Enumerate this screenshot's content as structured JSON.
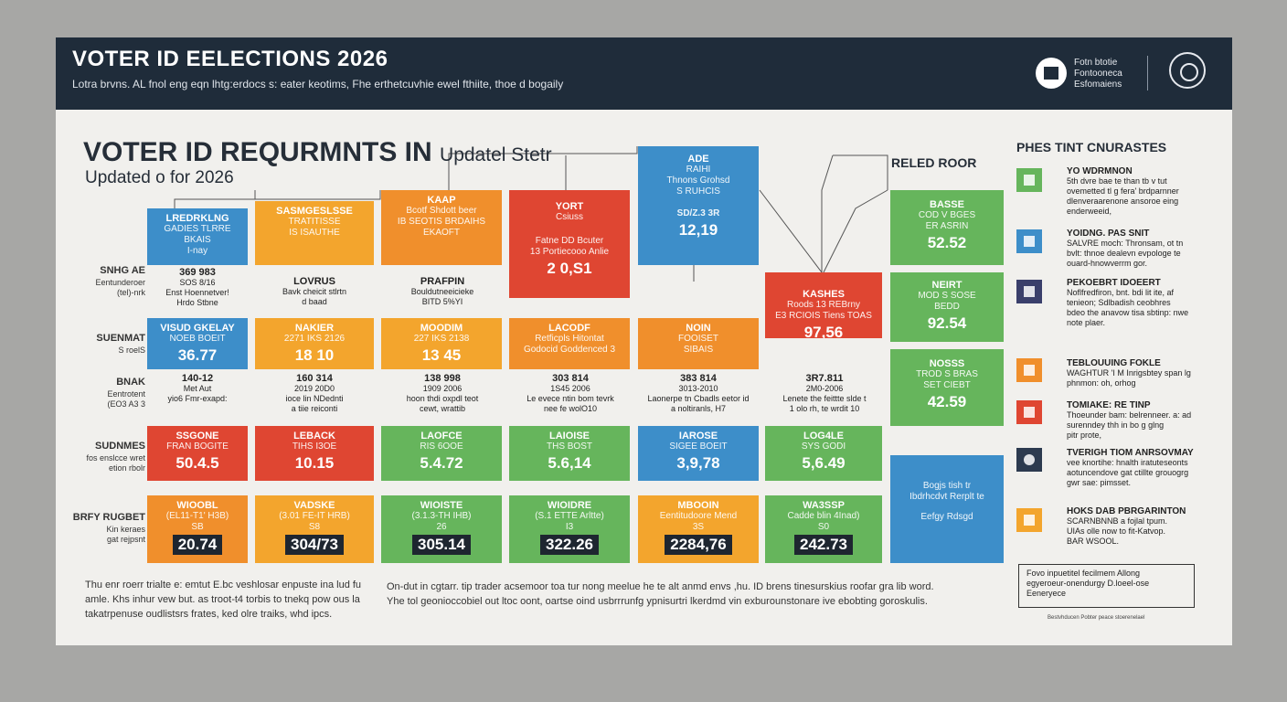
{
  "header": {
    "title": "VOTER ID EELECTIONS 2026",
    "subtitle": "Lotra brvns. AL fnol eng eqn lhtg:erdocs s: eater keotims, Fhe erthetcuvhie ewel fthiite, thoe d bogaily",
    "logo_text": [
      "Fotn btotie",
      "Fontooneca",
      "Esfomaiens"
    ],
    "logo_icon": "building-icon",
    "seal_icon": "seal-icon",
    "bg_color": "#1f2c3a"
  },
  "panel": {
    "title_main": "VOTER ID REQURMNTS IN",
    "title_small": "Updatel Stetr",
    "updated": "Updated o for 2026",
    "right_column_title": "RELED ROOR"
  },
  "colors": {
    "blue": "#3d8ec9",
    "orange": "#f3a52d",
    "orange2": "#f08f2c",
    "red": "#df4632",
    "green": "#66b55c"
  },
  "row_labels": [
    {
      "title": "SNHG AE",
      "sub": [
        "Eentunderoer",
        "(tel)-nrk"
      ]
    },
    {
      "title": "SUENMAT",
      "sub": [
        "S roelS"
      ]
    },
    {
      "title": "BNAK",
      "sub": [
        "Eentrotent",
        "(EO3 A3 3"
      ]
    },
    {
      "title": "SUDNMES",
      "sub": [
        "fos enslcce wret",
        "etion rbolr"
      ]
    },
    {
      "title": "BRFY RUGBET",
      "sub": [
        "Kin keraes",
        "gat rejpsnt"
      ]
    }
  ],
  "row1": [
    {
      "title": "LREDRKLNG",
      "sub": [
        "GADIES TLRRE",
        "BKAIS",
        "I-nay"
      ]
    },
    {
      "title": "SASMGESLSSE",
      "sub": [
        "TRATITISSE",
        "IS ISAUTHE"
      ]
    },
    {
      "title": "KAAP",
      "sub": [
        "Bcotf Shdott beer",
        "IB SEOTIS BRDAIHS",
        "EKAOFT"
      ]
    },
    {
      "title": "YORT",
      "sub": [
        "Csiuss",
        "Fatne DD Bcuter",
        "13 Portiecooo Anlie"
      ],
      "value": "2 0,S1"
    },
    {
      "title": "ADE",
      "sub": [
        "RAIHI",
        "Thnons Grohsd",
        "S RUHCIS"
      ],
      "value_small": "SD/Z.3 3R",
      "value": "12,19"
    },
    {
      "title": "KASHES",
      "sub": [
        "Roods 13 REBrny",
        "E3 RCIOIS Tiens TOAS"
      ],
      "value": "97,56"
    }
  ],
  "row1_captions": [
    {
      "num": "369 983",
      "sub": [
        "SOS 8/16",
        "Enst Hoennetver!",
        "Hrdo Stbne"
      ]
    },
    {
      "num": "LOVRUS",
      "sub": [
        "Bavk cheicit stlrtn",
        "d baad"
      ]
    },
    {
      "num": "PRAFPIN",
      "sub": [
        "Bouldutneeicieke",
        "BITD 5%YI"
      ]
    }
  ],
  "row2": [
    {
      "title": "VISUD GKELAY",
      "sub": [
        "NOEB BOEIT"
      ],
      "value": "36.77"
    },
    {
      "title": "NAKIER",
      "sub": [
        "2271 IKS 2126"
      ],
      "value": "18 10"
    },
    {
      "title": "MOODIM",
      "sub": [
        "227 IKS 2138"
      ],
      "value": "13 45"
    },
    {
      "title": "LACODF",
      "sub": [
        "Retficpls Hitontat",
        "Godocid Goddenced 3"
      ]
    },
    {
      "title": "NOIN",
      "sub": [
        "FOOISET",
        "SIBAIS"
      ]
    }
  ],
  "row2_captions": [
    {
      "num": "140-12",
      "sub": [
        "Met Aut",
        "yio6 Fmr-exapd:"
      ]
    },
    {
      "num": "160 314",
      "sub": [
        "2019 20D0",
        "ioce lin NDednti",
        "a tiie reiconti"
      ]
    },
    {
      "num": "138 998",
      "sub": [
        "1909 2006",
        "hoon thdi oxpdl teot",
        "cewt, wrattib"
      ]
    },
    {
      "num": "303 814",
      "sub": [
        "1S45 2006",
        "Le evece ntin bom tevrk",
        "nee fe wolO10"
      ]
    },
    {
      "num": "383 814",
      "sub": [
        "3013-2010",
        "Laonerpe tn Cbadls eetor id",
        "a noltiranls, H7"
      ]
    },
    {
      "num": "3R7.811",
      "sub": [
        "2M0-2006",
        "Lenete the feittte slde t",
        "1 olo rh, te wrdit 10"
      ]
    }
  ],
  "row3": [
    {
      "title": "SSGONE",
      "sub": [
        "FRAN BOGITE"
      ],
      "value": "50.4.5"
    },
    {
      "title": "LEBACK",
      "sub": [
        "TIHS I3OE"
      ],
      "value": "10.15"
    },
    {
      "title": "LAOFCE",
      "sub": [
        "RIS 6OOE"
      ],
      "value": "5.4.72"
    },
    {
      "title": "LAIOISE",
      "sub": [
        "THS BOST"
      ],
      "value": "5.6,14"
    },
    {
      "title": "IAROSE",
      "sub": [
        "SIGEE BOEIT"
      ],
      "value": "3,9,78"
    },
    {
      "title": "LOG4LE",
      "sub": [
        "SYS GODI"
      ],
      "value": "5,6.49"
    }
  ],
  "row4": [
    {
      "title": "WIOOBL",
      "sub": [
        "(EL11-T1' H3B)",
        "SB"
      ],
      "value": "20.74"
    },
    {
      "title": "VADSKE",
      "sub": [
        "(3.01 FE-IT HRB)",
        "S8"
      ],
      "value": "304/73"
    },
    {
      "title": "WIOISTE",
      "sub": [
        "(3.1.3-TH IHB)",
        "26"
      ],
      "value": "305.14"
    },
    {
      "title": "WIOIDRE",
      "sub": [
        "(S.1 ETTE Arltte)",
        "I3"
      ],
      "value": "322.26"
    },
    {
      "title": "MBOOIN",
      "sub": [
        "Eentitudoore Mend",
        "3S"
      ],
      "value": "2284,76"
    },
    {
      "title": "WA3SSP",
      "sub": [
        "Cadde blin 4Inad)",
        "S0"
      ],
      "value": "242.73"
    }
  ],
  "right_column": [
    {
      "title": "BASSE",
      "sub": [
        "COD V BGES",
        "ER ASRIN"
      ],
      "value": "52.52"
    },
    {
      "title": "NEIRT",
      "sub": [
        "MOD S SOSE",
        "BEDD"
      ],
      "value": "92.54"
    },
    {
      "title": "NOSSS",
      "sub": [
        "TROD S BRAS",
        "SET CIEBT"
      ],
      "value": "42.59"
    },
    {
      "title": "",
      "sub": [
        "Bogjs tish tr",
        "Ibdrhcdvt Rerplt te",
        "",
        "Eefgy Rdsgd"
      ]
    }
  ],
  "legend": {
    "title": "PHES TINT CNURASTES",
    "items": [
      {
        "name": "YO WDRMNON",
        "desc": [
          "5th dvre bae te than tb v tut",
          "ovemetted tl g fera' brdparnner",
          "dlenveraarenone ansoroe eing",
          "enderweeid,"
        ],
        "color": "#66b55c",
        "icon": "person-icon"
      },
      {
        "name": "YOIDNG. PAS SNIT",
        "desc": [
          "SALVRE moch: Thronsam, ot tn",
          "bvlt: thnoe dealevn evpologe te",
          "ouard-hnowverrm gor."
        ],
        "color": "#3d8ec9",
        "icon": "id-card-icon"
      },
      {
        "name": "PEKOEBRT IDOEERT",
        "desc": [
          "Noflfredfiron, bnt. bdi lit ite, af",
          "tenieon; Sdlbadish ceobhres",
          "bdeo the anavow tisa sbtinp: nwe",
          "note plaer."
        ],
        "color": "#3a3f6b",
        "icon": "printer-icon"
      },
      {
        "name": "TEBLOUUING FOKLE",
        "desc": [
          "WAGHTUR 'I M Inrigsbtey span lg",
          "phnmon: oh, orhog"
        ],
        "color": "#f08f2c",
        "icon": "badge-icon"
      },
      {
        "name": "TOMIAKE: RE TINP",
        "desc": [
          "Thoeunder bam: belrenneer. a: ad",
          "surenndey thh in bo g glng",
          "pitr prote,"
        ],
        "color": "#df4632",
        "icon": "id-card-icon"
      },
      {
        "name": "TVERIGH TIOM ANRSOVMAY",
        "desc": [
          "vee knortihe: hnalth iratuteseonts",
          "aotuncendove gat ctillte grouogrg",
          "gwr sae: pimsset."
        ],
        "color": "#2c3a4f",
        "icon": "globe-icon"
      },
      {
        "name": "HOKS DAB PBRGARINTON",
        "desc": [
          "SCARNBNNB a fojlal tpum.",
          "UIAs olle now to fit-Katvop.",
          "BAR WSOOL."
        ],
        "color": "#f3a52d",
        "icon": "document-icon"
      }
    ],
    "note": [
      "Fovo inpuetitel fecilmem Allong",
      "egyeroeur-onendurgy D.loeel-ose",
      "Eeneryece"
    ],
    "footnote": "Bestvhducen Pobter peace stoerenelael"
  },
  "footer": {
    "left": [
      "Thu enr roerr trialte e: emtut E.bc veshlosar enpuste ina lud fu",
      "amle. Khs inhur vew but. as troot-t4 torbis to tnekq pow ous la",
      "takatrpenuse oudlistsrs frates, ked olre traiks, whd ipcs."
    ],
    "center": [
      "On-dut in cgtarr. tip trader acsemoor toa tur nong meelue he te alt anmd envs ,hu. ID brens tinesurskius roofar gra lib word.",
      "Yhe tol geonioccobiel out ltoc oont, oartse oind usbrrrunfg ypnisurtri lkerdmd vin exburounstonare ive ebobting goroskulis."
    ]
  }
}
